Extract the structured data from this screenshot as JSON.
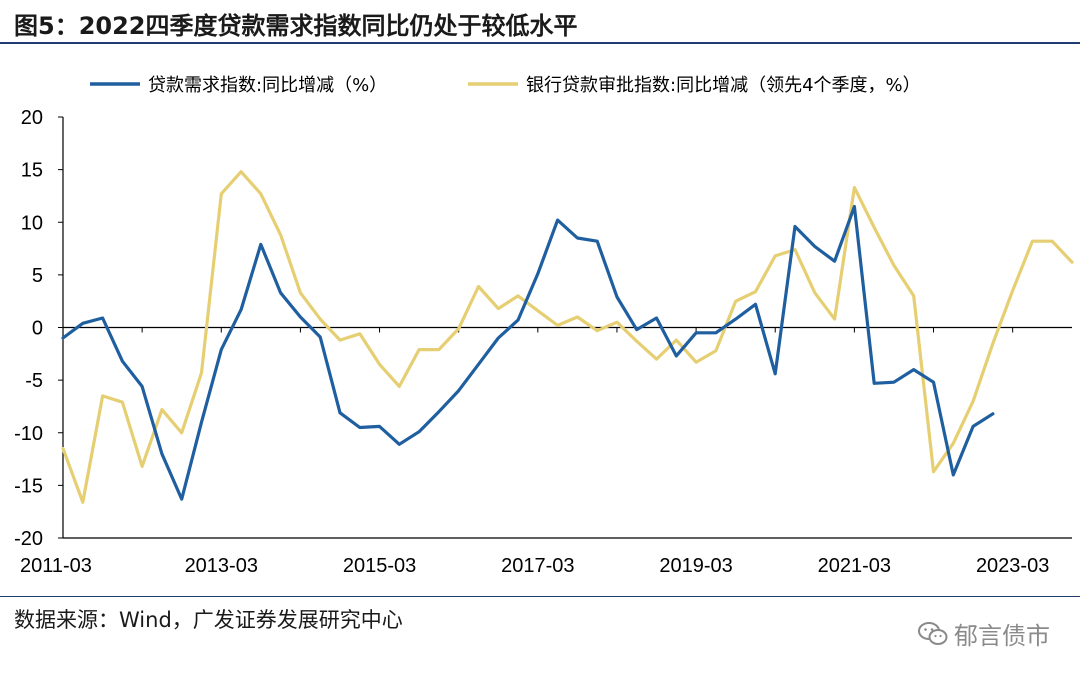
{
  "header": {
    "title": "图5：2022四季度贷款需求指数同比仍处于较低水平"
  },
  "footer": {
    "source": "数据来源：Wind，广发证券发展研究中心",
    "watermark": "郁言债市"
  },
  "chart_data": {
    "type": "line",
    "title": "图5：2022四季度贷款需求指数同比仍处于较低水平",
    "xlabel": "",
    "ylabel": "",
    "ylim": [
      -20,
      20
    ],
    "yticks": [
      "20",
      "15",
      "10",
      "5",
      "0",
      "-5",
      "-10",
      "-15",
      "-20"
    ],
    "yticks_values": [
      20,
      15,
      10,
      5,
      0,
      -5,
      -10,
      -15,
      -20
    ],
    "xticks": [
      "2011-03",
      "2013-03",
      "2015-03",
      "2017-03",
      "2019-03",
      "2021-03",
      "2023-03"
    ],
    "xticks_index": [
      0,
      8,
      16,
      24,
      32,
      40,
      48
    ],
    "n_quarters": 52,
    "grid": false,
    "legend": "top",
    "colors": {
      "demand": "#1f5fa0",
      "approval": "#e6cf72",
      "axis": "#000000",
      "rule": "#1f3d73"
    },
    "series": [
      {
        "name": "贷款需求指数:同比增减（%）",
        "color": "#1f5fa0",
        "values": [
          -1.0,
          0.4,
          0.9,
          -3.2,
          -5.6,
          -12.0,
          -16.3,
          -9.0,
          -2.1,
          1.7,
          7.9,
          3.3,
          1.0,
          -0.9,
          -8.1,
          -9.5,
          -9.4,
          -11.1,
          -9.9,
          -8.0,
          -6.0,
          -3.5,
          -1.0,
          0.7,
          5.1,
          10.2,
          8.5,
          8.2,
          2.9,
          -0.2,
          0.9,
          -2.7,
          -0.5,
          -0.5,
          0.8,
          2.2,
          -4.4,
          9.6,
          7.7,
          6.3,
          11.5,
          -5.3,
          -5.2,
          -4.0,
          -5.2,
          -14.0,
          -9.4,
          -8.2
        ]
      },
      {
        "name": "银行贷款审批指数:同比增减（领先4个季度，%）",
        "color": "#e6cf72",
        "values": [
          -11.5,
          -16.6,
          -6.5,
          -7.1,
          -13.2,
          -7.8,
          -10.0,
          -4.3,
          12.7,
          14.8,
          12.7,
          8.8,
          3.3,
          0.8,
          -1.2,
          -0.6,
          -3.5,
          -5.6,
          -2.1,
          -2.1,
          -0.1,
          3.9,
          1.8,
          3.0,
          1.6,
          0.2,
          1.0,
          -0.3,
          0.5,
          -1.3,
          -3.0,
          -1.2,
          -3.3,
          -2.2,
          2.5,
          3.4,
          6.8,
          7.4,
          3.3,
          0.8,
          13.3,
          9.5,
          5.9,
          3.0,
          -13.7,
          -11.0,
          -7.0,
          -1.5,
          3.5,
          8.2,
          8.2,
          6.2
        ]
      }
    ]
  }
}
